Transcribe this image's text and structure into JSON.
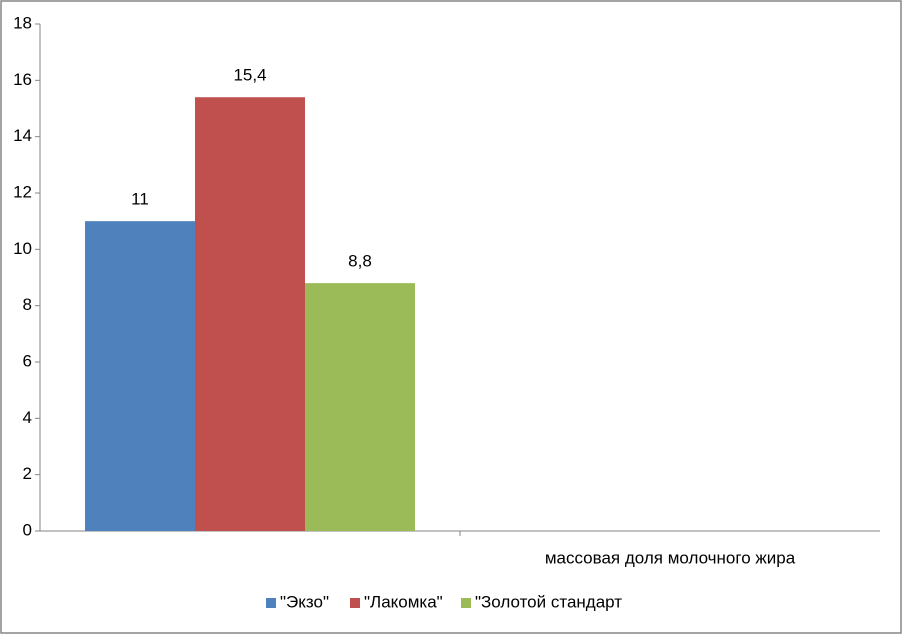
{
  "chart_data": {
    "type": "bar",
    "categories": [
      null,
      "массовая доля молочного жира"
    ],
    "series": [
      {
        "name": "\"Экзо\"",
        "color": "#4f81bd",
        "values": [
          11,
          null
        ]
      },
      {
        "name": "\"Лакомка\"",
        "color": "#c0504d",
        "values": [
          15.4,
          null
        ],
        "value_labels": [
          "15,4",
          null
        ]
      },
      {
        "name": "\"Золотой стандарт",
        "color": "#9bbb59",
        "values": [
          8.8,
          null
        ],
        "value_labels": [
          "8,8",
          null
        ]
      }
    ],
    "ylim": [
      0,
      18
    ],
    "yticks": [
      0,
      2,
      4,
      6,
      8,
      10,
      12,
      14,
      16,
      18
    ],
    "grid": false,
    "legend": "bottom"
  }
}
